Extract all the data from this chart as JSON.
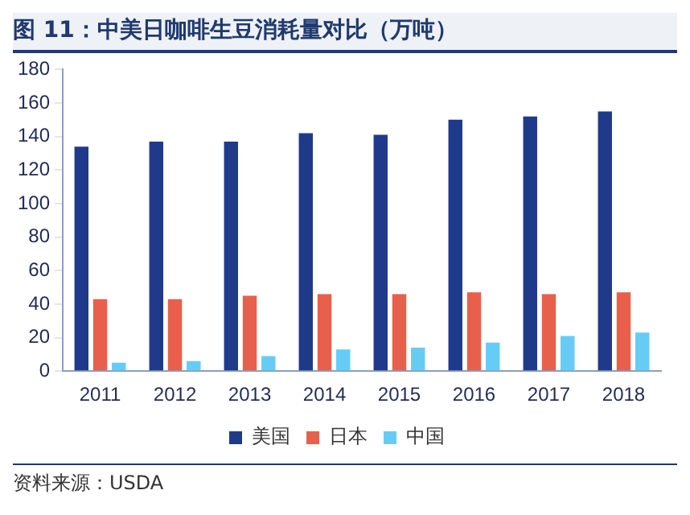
{
  "chart_data": {
    "type": "bar",
    "title": "图 11：中美日咖啡生豆消耗量对比（万吨）",
    "categories": [
      "2011",
      "2012",
      "2013",
      "2014",
      "2015",
      "2016",
      "2017",
      "2018"
    ],
    "series": [
      {
        "name": "美国",
        "color": "#1f3a8a",
        "values": [
          134,
          137,
          137,
          142,
          141,
          150,
          152,
          155
        ]
      },
      {
        "name": "日本",
        "color": "#e8604c",
        "values": [
          43,
          43,
          45,
          46,
          46,
          47,
          46,
          47
        ]
      },
      {
        "name": "中国",
        "color": "#66ccf5",
        "values": [
          5,
          6,
          9,
          13,
          14,
          17,
          21,
          23
        ]
      }
    ],
    "ylim": [
      0,
      180
    ],
    "yticks": [
      0,
      20,
      40,
      60,
      80,
      100,
      120,
      140,
      160,
      180
    ],
    "grid": false,
    "legend": "bottom",
    "annotations": [
      "资料来源：USDA"
    ]
  }
}
